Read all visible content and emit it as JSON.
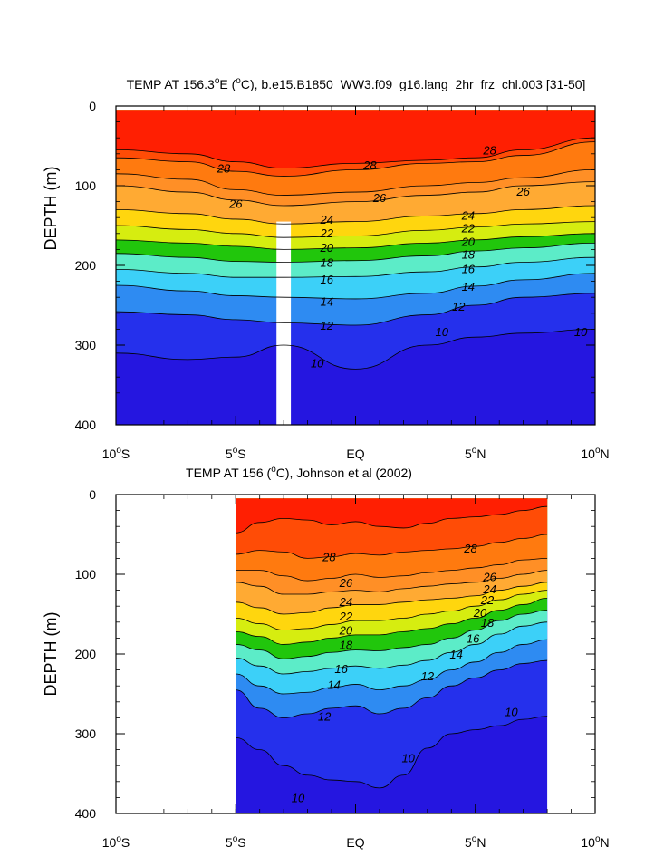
{
  "chart_data": [
    {
      "type": "contour",
      "title_main": "TEMP AT 156.3",
      "title_sup": "o",
      "title_mid": "E (",
      "title_sup2": "o",
      "title_end": "C), b.e15.B1850_WW3.f09_g16.lang_2hr_frz_chl.003 [31-50]",
      "ylabel": "DEPTH (m)",
      "xlim": [
        -10,
        10
      ],
      "ylim": [
        400,
        0
      ],
      "x_ticks": [
        {
          "value": -10,
          "num": "10",
          "hemi": "S"
        },
        {
          "value": -5,
          "num": "5",
          "hemi": "S"
        },
        {
          "value": 0,
          "num": "EQ",
          "hemi": ""
        },
        {
          "value": 5,
          "num": "5",
          "hemi": "N"
        },
        {
          "value": 10,
          "num": "10",
          "hemi": "N"
        }
      ],
      "y_ticks": [
        "0",
        "100",
        "200",
        "300",
        "400"
      ],
      "data_x_range": [
        -10,
        10
      ],
      "data_y_range": [
        5,
        400
      ],
      "missing_strip": [
        -3.3,
        -2.7,
        145,
        400
      ],
      "x_nodes": [
        -10,
        -7,
        -5,
        -3,
        0,
        3,
        5,
        7,
        10
      ],
      "isotherms": [
        {
          "temp": 28.5,
          "depth": [
            55,
            60,
            70,
            78,
            72,
            68,
            65,
            55,
            40
          ]
        },
        {
          "temp": 28,
          "depth": [
            65,
            70,
            82,
            88,
            80,
            72,
            70,
            62,
            45
          ]
        },
        {
          "temp": 27,
          "depth": [
            85,
            92,
            105,
            112,
            108,
            100,
            96,
            90,
            80
          ]
        },
        {
          "temp": 26,
          "depth": [
            100,
            108,
            118,
            125,
            120,
            112,
            108,
            100,
            95
          ]
        },
        {
          "temp": 24,
          "depth": [
            130,
            135,
            142,
            148,
            145,
            138,
            135,
            130,
            125
          ]
        },
        {
          "temp": 22,
          "depth": [
            150,
            155,
            160,
            165,
            163,
            156,
            152,
            148,
            145
          ]
        },
        {
          "temp": 20,
          "depth": [
            168,
            172,
            176,
            180,
            178,
            172,
            168,
            164,
            160
          ]
        },
        {
          "temp": 18,
          "depth": [
            185,
            190,
            195,
            196,
            194,
            188,
            182,
            178,
            172
          ]
        },
        {
          "temp": 16,
          "depth": [
            205,
            210,
            215,
            215,
            214,
            208,
            202,
            196,
            190
          ]
        },
        {
          "temp": 14,
          "depth": [
            225,
            232,
            238,
            240,
            242,
            235,
            226,
            218,
            210
          ]
        },
        {
          "temp": 12,
          "depth": [
            258,
            262,
            268,
            272,
            275,
            262,
            250,
            240,
            235
          ]
        },
        {
          "temp": 10,
          "depth": [
            310,
            318,
            315,
            300,
            330,
            300,
            290,
            285,
            280
          ]
        }
      ],
      "contour_labels": [
        {
          "text": "28",
          "x": -5.5,
          "depth": 78
        },
        {
          "text": "28",
          "x": 0.6,
          "depth": 74
        },
        {
          "text": "28",
          "x": 5.6,
          "depth": 55
        },
        {
          "text": "26",
          "x": -5.0,
          "depth": 122
        },
        {
          "text": "26",
          "x": 1.0,
          "depth": 115
        },
        {
          "text": "26",
          "x": 7.0,
          "depth": 107
        },
        {
          "text": "24",
          "x": -1.2,
          "depth": 142
        },
        {
          "text": "24",
          "x": 4.7,
          "depth": 137
        },
        {
          "text": "22",
          "x": -1.2,
          "depth": 159
        },
        {
          "text": "22",
          "x": 4.7,
          "depth": 153
        },
        {
          "text": "20",
          "x": -1.2,
          "depth": 177
        },
        {
          "text": "20",
          "x": 4.7,
          "depth": 170
        },
        {
          "text": "18",
          "x": -1.2,
          "depth": 196
        },
        {
          "text": "18",
          "x": 4.7,
          "depth": 186
        },
        {
          "text": "16",
          "x": -1.2,
          "depth": 217
        },
        {
          "text": "16",
          "x": 4.7,
          "depth": 204
        },
        {
          "text": "14",
          "x": -1.2,
          "depth": 245
        },
        {
          "text": "14",
          "x": 4.7,
          "depth": 226
        },
        {
          "text": "12",
          "x": -1.2,
          "depth": 275
        },
        {
          "text": "12",
          "x": 4.3,
          "depth": 251
        },
        {
          "text": "10",
          "x": 3.6,
          "depth": 283
        },
        {
          "text": "10",
          "x": -1.6,
          "depth": 322
        },
        {
          "text": "10",
          "x": 9.4,
          "depth": 283
        }
      ]
    },
    {
      "type": "contour",
      "title_main": "TEMP AT 156 (",
      "title_sup": "o",
      "title_end": "C), Johnson et al (2002)",
      "ylabel": "DEPTH (m)",
      "xlim": [
        -10,
        10
      ],
      "ylim": [
        400,
        0
      ],
      "x_ticks": [
        {
          "value": -10,
          "num": "10",
          "hemi": "S"
        },
        {
          "value": -5,
          "num": "5",
          "hemi": "S"
        },
        {
          "value": 0,
          "num": "EQ",
          "hemi": ""
        },
        {
          "value": 5,
          "num": "5",
          "hemi": "N"
        },
        {
          "value": 10,
          "num": "10",
          "hemi": "N"
        }
      ],
      "y_ticks": [
        "0",
        "100",
        "200",
        "300",
        "400"
      ],
      "data_x_range": [
        -5,
        8
      ],
      "data_y_range": [
        5,
        400
      ],
      "x_nodes": [
        -5,
        -4,
        -3,
        -2,
        -1,
        0,
        1,
        2,
        3,
        4,
        5,
        6,
        7,
        8
      ],
      "isotherms": [
        {
          "temp": 28.5,
          "depth": [
            48,
            35,
            30,
            32,
            38,
            34,
            40,
            42,
            36,
            30,
            28,
            25,
            20,
            15
          ]
        },
        {
          "temp": 28,
          "depth": [
            75,
            70,
            72,
            80,
            78,
            74,
            76,
            72,
            70,
            68,
            65,
            60,
            55,
            50
          ]
        },
        {
          "temp": 27,
          "depth": [
            95,
            95,
            102,
            108,
            105,
            100,
            104,
            102,
            98,
            95,
            92,
            88,
            82,
            80
          ]
        },
        {
          "temp": 26,
          "depth": [
            110,
            115,
            125,
            125,
            122,
            120,
            122,
            118,
            115,
            112,
            110,
            105,
            100,
            95
          ]
        },
        {
          "temp": 24,
          "depth": [
            135,
            142,
            150,
            148,
            142,
            138,
            138,
            135,
            132,
            130,
            127,
            120,
            115,
            110
          ]
        },
        {
          "temp": 22,
          "depth": [
            155,
            162,
            170,
            168,
            163,
            158,
            158,
            155,
            150,
            146,
            140,
            132,
            125,
            120
          ]
        },
        {
          "temp": 20,
          "depth": [
            172,
            178,
            188,
            185,
            180,
            176,
            176,
            172,
            168,
            162,
            155,
            145,
            138,
            130
          ]
        },
        {
          "temp": 18,
          "depth": [
            188,
            195,
            206,
            203,
            198,
            195,
            196,
            192,
            188,
            180,
            170,
            158,
            150,
            145
          ]
        },
        {
          "temp": 16,
          "depth": [
            205,
            215,
            225,
            222,
            218,
            215,
            218,
            214,
            208,
            198,
            188,
            175,
            165,
            160
          ]
        },
        {
          "temp": 14,
          "depth": [
            225,
            240,
            250,
            248,
            242,
            238,
            245,
            240,
            232,
            220,
            210,
            198,
            188,
            182
          ]
        },
        {
          "temp": 12,
          "depth": [
            245,
            268,
            280,
            275,
            268,
            265,
            275,
            268,
            255,
            240,
            230,
            220,
            212,
            208
          ]
        },
        {
          "temp": 10,
          "depth": [
            305,
            320,
            340,
            352,
            358,
            360,
            368,
            352,
            318,
            300,
            295,
            290,
            282,
            278
          ]
        }
      ],
      "contour_labels": [
        {
          "text": "28",
          "x": -1.1,
          "depth": 78
        },
        {
          "text": "28",
          "x": 4.8,
          "depth": 67
        },
        {
          "text": "26",
          "x": -0.4,
          "depth": 110
        },
        {
          "text": "26",
          "x": 5.6,
          "depth": 103
        },
        {
          "text": "24",
          "x": -0.4,
          "depth": 134
        },
        {
          "text": "24",
          "x": 5.6,
          "depth": 118
        },
        {
          "text": "22",
          "x": -0.4,
          "depth": 152
        },
        {
          "text": "22",
          "x": 5.5,
          "depth": 132
        },
        {
          "text": "20",
          "x": -0.4,
          "depth": 170
        },
        {
          "text": "20",
          "x": 5.2,
          "depth": 148
        },
        {
          "text": "18",
          "x": -0.4,
          "depth": 188
        },
        {
          "text": "18",
          "x": 5.5,
          "depth": 160
        },
        {
          "text": "16",
          "x": -0.6,
          "depth": 218
        },
        {
          "text": "16",
          "x": 4.9,
          "depth": 180
        },
        {
          "text": "14",
          "x": -0.9,
          "depth": 238
        },
        {
          "text": "14",
          "x": 4.2,
          "depth": 200
        },
        {
          "text": "12",
          "x": 3.0,
          "depth": 227
        },
        {
          "text": "12",
          "x": -1.3,
          "depth": 278
        },
        {
          "text": "10",
          "x": 6.5,
          "depth": 272
        },
        {
          "text": "10",
          "x": 2.2,
          "depth": 330
        },
        {
          "text": "10",
          "x": -2.4,
          "depth": 380
        }
      ]
    }
  ]
}
